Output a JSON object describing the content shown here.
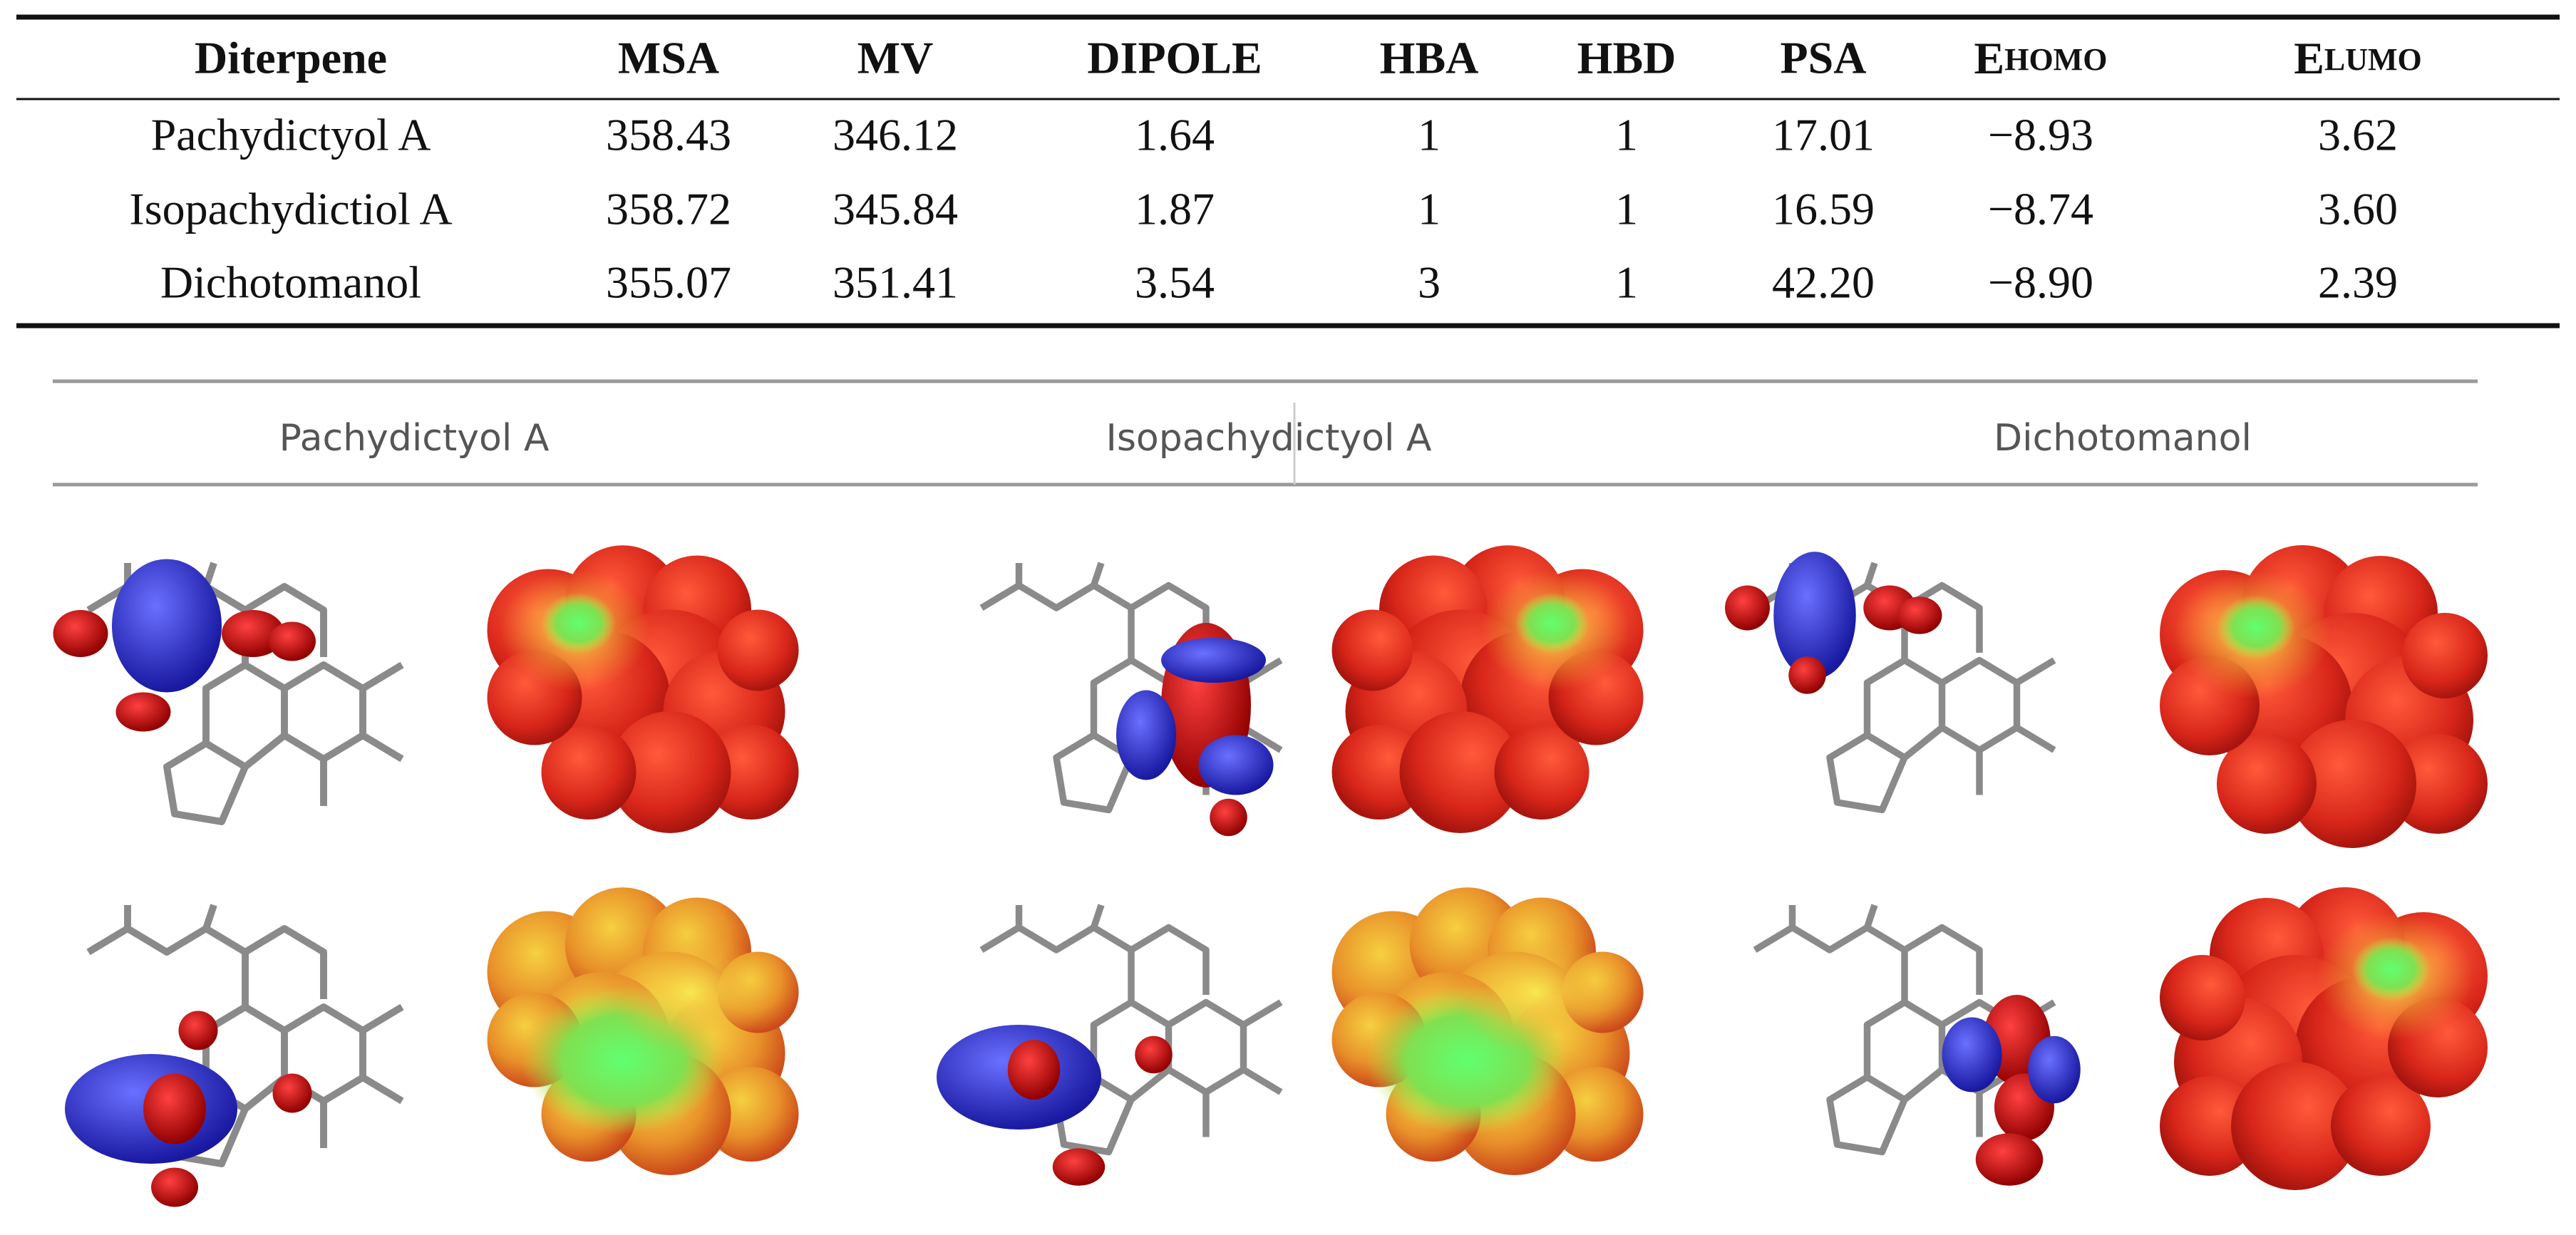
{
  "table": {
    "headers": [
      "Diterpene",
      "MSA",
      "MV",
      "DIPOLE",
      "HBA",
      "HBD",
      "PSA",
      {
        "main": "E",
        "small": "HOMO"
      },
      {
        "main": "E",
        "small": "LUMO"
      }
    ],
    "rows": [
      [
        "Pachydictyol A",
        "358.43",
        "346.12",
        "1.64",
        "1",
        "1",
        "17.01",
        "−8.93",
        "3.62"
      ],
      [
        "Isopachydictiol A",
        "358.72",
        "345.84",
        "1.87",
        "1",
        "1",
        "16.59",
        "−8.74",
        "3.60"
      ],
      [
        "Dichotomanol",
        "355.07",
        "351.41",
        "3.54",
        "3",
        "1",
        "42.20",
        "−8.90",
        "2.39"
      ]
    ]
  },
  "figure": {
    "labels": [
      "Pachydictyol A",
      "Isopachydictyol  A",
      "Dichotomanol"
    ]
  }
}
